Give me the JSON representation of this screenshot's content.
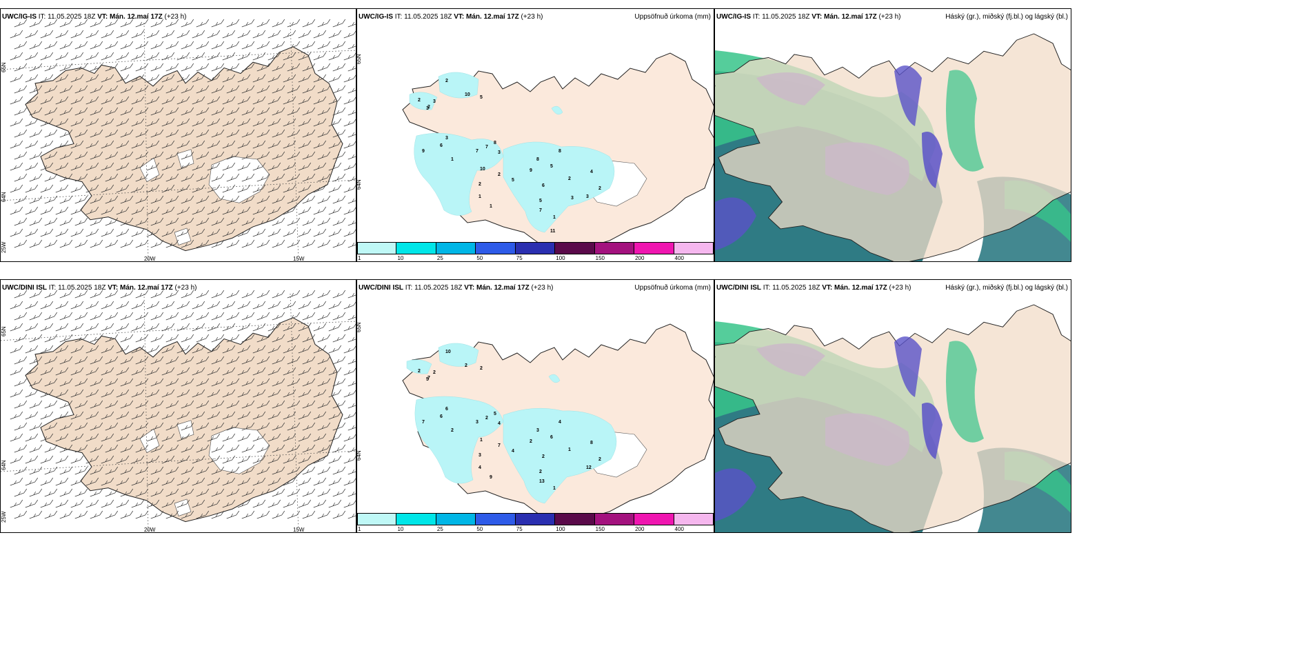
{
  "colors": {
    "land": "#f1dcc8",
    "land_light": "#fbe9dc",
    "glacier": "#ffffff",
    "precip": "#b9f5f7",
    "sea_dark": "#2f7b84",
    "sea_mid": "#25b88d",
    "cloud_high": "#5a52c8",
    "cloud_green": "#37c48a"
  },
  "colorbar": {
    "ticks": [
      "1",
      "10",
      "25",
      "50",
      "75",
      "100",
      "150",
      "200",
      "400"
    ],
    "colors": [
      "#bff8f6",
      "#00e6e8",
      "#00b6e6",
      "#2e5be8",
      "#2a2fb0",
      "#5a0a4a",
      "#a3127e",
      "#ef16b0",
      "#f5b7ee"
    ]
  },
  "rows": [
    {
      "model": "UWC/IG-IS",
      "it_label": "IT:",
      "it_value": "11.05.2025 18Z",
      "vt_label": "VT:",
      "vt_value": "Mán. 12.maí 17Z",
      "lead": "(+23 h)",
      "wind": {
        "lat_labels": [
          "65N",
          "64N",
          "25W"
        ],
        "lon_labels": [
          "20W",
          "15W"
        ]
      },
      "precip": {
        "title": "Uppsöfnuð úrkoma (mm)",
        "lat_labels": [
          "65N",
          "64N"
        ],
        "values": [
          "2",
          "10",
          "5",
          "2",
          "3",
          "3",
          "2",
          "3",
          "9",
          "6",
          "7",
          "7",
          "8",
          "3",
          "1",
          "10",
          "2",
          "2",
          "5",
          "1",
          "1",
          "8",
          "9",
          "5",
          "8",
          "6",
          "2",
          "4",
          "2",
          "3",
          "5",
          "7",
          "1",
          "11",
          "3"
        ]
      },
      "cloud": {
        "title": "Háský (gr.), miðský (fj.bl.) og lágský (bl.)"
      }
    },
    {
      "model": "UWC/DINI ISL",
      "it_label": "IT:",
      "it_value": "11.05.2025 18Z",
      "vt_label": "VT:",
      "vt_value": "Mán. 12.maí 17Z",
      "lead": "(+23 h)",
      "wind": {
        "lat_labels": [
          "65N",
          "64N",
          "25W"
        ],
        "lon_labels": [
          "20W",
          "15W"
        ]
      },
      "precip": {
        "title": "Uppsöfnuð úrkoma (mm)",
        "lat_labels": [
          "65N",
          "64N"
        ],
        "values": [
          "10",
          "2",
          "2",
          "2",
          "2",
          "5",
          "7",
          "6",
          "7",
          "6",
          "3",
          "2",
          "5",
          "4",
          "2",
          "1",
          "7",
          "3",
          "4",
          "4",
          "9",
          "3",
          "2",
          "6",
          "4",
          "2",
          "1",
          "8",
          "2",
          "12",
          "2",
          "13",
          "1"
        ]
      },
      "cloud": {
        "title": "Háský (gr.), miðský (fj.bl.) og lágský (bl.)"
      }
    }
  ]
}
